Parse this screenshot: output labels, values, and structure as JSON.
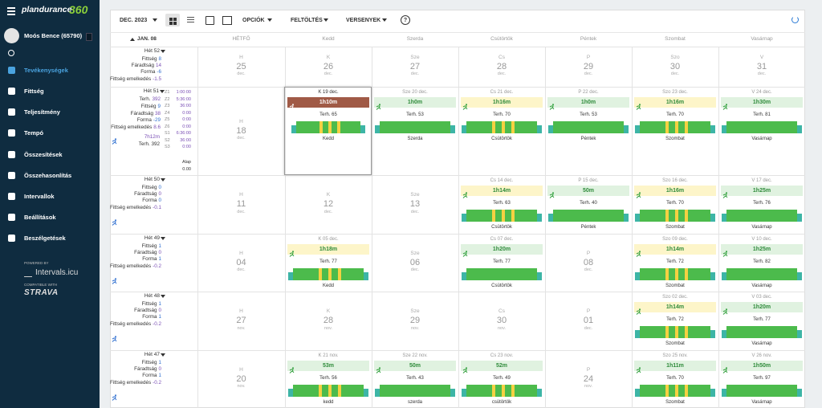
{
  "sidebar": {
    "logo": {
      "main": "plandurance",
      "num": "360"
    },
    "user": "Moós Bence (65790)",
    "menu": [
      "Tevékenységek",
      "Fittség",
      "Teljesítmény",
      "Tempó",
      "Összesítések",
      "Összehasonlítás",
      "Intervallok",
      "Beállítások",
      "Beszélgetések"
    ],
    "powered": "POWERED BY",
    "intervals": "Intervals.icu",
    "compat": "COMPATIBLE WITH",
    "strava": "STRAVA"
  },
  "toolbar": {
    "month": "DEC. 2023",
    "menus": [
      "OPCIÓK",
      "FELTÖLTÉS",
      "VERSENYEK"
    ],
    "help": "?"
  },
  "header": {
    "jump": "JAN. 08",
    "weekdays": [
      "HÉTFŐ",
      "Kedd",
      "Szerda",
      "Csütörtök",
      "Péntek",
      "Szombat",
      "Vasárnap"
    ]
  },
  "weeks": [
    {
      "label": "Hét 52",
      "stats": [
        {
          "label": "Fittség",
          "value": 8
        },
        {
          "label": "Fáradtság",
          "value": 14
        },
        {
          "label": "Forma",
          "value": -6
        },
        {
          "label": "Fittség emelkedés",
          "value": -1.5
        }
      ],
      "days": [
        {
          "abbr": "H",
          "num": "25",
          "month": "dec."
        },
        {
          "abbr": "K",
          "num": "26",
          "month": "dec."
        },
        {
          "abbr": "Sze",
          "num": "27",
          "month": "dec."
        },
        {
          "abbr": "Cs",
          "num": "28",
          "month": "dec."
        },
        {
          "abbr": "P",
          "num": "29",
          "month": "dec."
        },
        {
          "abbr": "Szo",
          "num": "30",
          "month": "dec."
        },
        {
          "abbr": "V",
          "num": "31",
          "month": "dec."
        }
      ]
    },
    {
      "label": "Hét 51",
      "stats": [
        {
          "label": "Terh.",
          "value": 392
        },
        {
          "label": "Fittség",
          "value": 9
        },
        {
          "label": "Fáradtság",
          "value": 38
        },
        {
          "label": "Forma",
          "value": -29
        },
        {
          "label": "Fittség emelkedés",
          "value": 8.6
        }
      ],
      "totals": {
        "duration": "7h12m",
        "load": "Terh. 392"
      },
      "zones": [
        [
          "Z1",
          "1:00:00"
        ],
        [
          "Z2",
          "5:36:00"
        ],
        [
          "Z3",
          "36:00"
        ],
        [
          "Z4",
          "0:00"
        ],
        [
          "Z5",
          "0:00"
        ],
        [
          "Z6",
          "0:00"
        ],
        [
          "S1",
          "6:36:00"
        ],
        [
          "S2",
          "36:00"
        ],
        [
          "S3",
          "0:00"
        ]
      ],
      "alap": {
        "label": "Alap",
        "value": "0.00"
      },
      "days": [
        {
          "abbr": "H",
          "num": "18",
          "month": "dec."
        },
        {
          "head": "K 19 dec.",
          "duration": "1h10m",
          "load": "Terh. 65",
          "name": "Kedd",
          "color": "#a05a46",
          "stripes": true,
          "selected": true
        },
        {
          "head": "Sze 20 dec.",
          "duration": "1h0m",
          "load": "Terh. 53",
          "name": "Szerda",
          "color": "#e0f2e0",
          "stripes": false
        },
        {
          "head": "Cs 21 dec.",
          "duration": "1h16m",
          "load": "Terh. 70",
          "name": "Csütörtök",
          "color": "#fdf5c9",
          "stripes": true
        },
        {
          "head": "P 22 dec.",
          "duration": "1h0m",
          "load": "Terh. 53",
          "name": "Péntek",
          "color": "#e0f2e0",
          "stripes": false
        },
        {
          "head": "Szo 23 dec.",
          "duration": "1h16m",
          "load": "Terh. 70",
          "name": "Szombat",
          "color": "#fdf5c9",
          "stripes": true
        },
        {
          "head": "V 24 dec.",
          "duration": "1h30m",
          "load": "Terh. 81",
          "name": "Vasárnap",
          "color": "#e0f2e0",
          "stripes": false
        }
      ]
    },
    {
      "label": "Hét 50",
      "stats": [
        {
          "label": "Fittség",
          "value": 0
        },
        {
          "label": "Fáradtság",
          "value": 0
        },
        {
          "label": "Forma",
          "value": 0
        },
        {
          "label": "Fittség emelkedés",
          "value": -0.1
        }
      ],
      "days": [
        {
          "abbr": "H",
          "num": "11",
          "month": "dec."
        },
        {
          "abbr": "K",
          "num": "12",
          "month": "dec."
        },
        {
          "abbr": "Sze",
          "num": "13",
          "month": "dec."
        },
        {
          "head": "Cs 14 dec.",
          "duration": "1h14m",
          "load": "Terh. 63",
          "name": "Csütörtök",
          "color": "#fdf5c9",
          "stripes": true
        },
        {
          "head": "P 15 dec.",
          "duration": "50m",
          "load": "Terh. 40",
          "name": "Péntek",
          "color": "#e0f2e0",
          "stripes": false
        },
        {
          "head": "Szo 16 dec.",
          "duration": "1h16m",
          "load": "Terh. 70",
          "name": "Szombat",
          "color": "#fdf5c9",
          "stripes": true
        },
        {
          "head": "V 17 dec.",
          "duration": "1h25m",
          "load": "Terh. 76",
          "name": "Vasárnap",
          "color": "#e0f2e0",
          "stripes": false
        }
      ]
    },
    {
      "label": "Hét 49",
      "stats": [
        {
          "label": "Fittség",
          "value": 1
        },
        {
          "label": "Fáradtság",
          "value": 0
        },
        {
          "label": "Forma",
          "value": 1
        },
        {
          "label": "Fittség emelkedés",
          "value": -0.2
        }
      ],
      "days": [
        {
          "abbr": "H",
          "num": "04",
          "month": "dec."
        },
        {
          "head": "K 05 dec.",
          "duration": "1h18m",
          "load": "Terh. 77",
          "name": "Kedd",
          "color": "#fdf5c9",
          "stripes": true
        },
        {
          "abbr": "Sze",
          "num": "06",
          "month": "dec."
        },
        {
          "head": "Cs 07 dec.",
          "duration": "1h20m",
          "load": "Terh. 77",
          "name": "Csütörtök",
          "color": "#e0f2e0",
          "stripes": false
        },
        {
          "abbr": "P",
          "num": "08",
          "month": "dec."
        },
        {
          "head": "Szo 09 dec.",
          "duration": "1h14m",
          "load": "Terh. 72",
          "name": "Szombat",
          "color": "#fdf5c9",
          "stripes": true
        },
        {
          "head": "V 10 dec.",
          "duration": "1h25m",
          "load": "Terh. 82",
          "name": "Vasárnap",
          "color": "#e0f2e0",
          "stripes": false
        }
      ]
    },
    {
      "label": "Hét 48",
      "stats": [
        {
          "label": "Fittség",
          "value": 1
        },
        {
          "label": "Fáradtság",
          "value": 0
        },
        {
          "label": "Forma",
          "value": 1
        },
        {
          "label": "Fittség emelkedés",
          "value": -0.2
        }
      ],
      "days": [
        {
          "abbr": "H",
          "num": "27",
          "month": "nov."
        },
        {
          "abbr": "K",
          "num": "28",
          "month": "nov."
        },
        {
          "abbr": "Sze",
          "num": "29",
          "month": "nov."
        },
        {
          "abbr": "Cs",
          "num": "30",
          "month": "nov."
        },
        {
          "abbr": "P",
          "num": "01",
          "month": "dec."
        },
        {
          "head": "Szo 02 dec.",
          "duration": "1h14m",
          "load": "Terh. 72",
          "name": "Szombat",
          "color": "#fdf5c9",
          "stripes": true
        },
        {
          "head": "V 03 dec.",
          "duration": "1h20m",
          "load": "Terh. 77",
          "name": "Vasárnap",
          "color": "#e0f2e0",
          "stripes": false
        }
      ]
    },
    {
      "label": "Hét 47",
      "stats": [
        {
          "label": "Fittség",
          "value": 1
        },
        {
          "label": "Fáradtság",
          "value": 0
        },
        {
          "label": "Forma",
          "value": 1
        },
        {
          "label": "Fittség emelkedés",
          "value": -0.2
        }
      ],
      "days": [
        {
          "abbr": "H",
          "num": "20",
          "month": "nov."
        },
        {
          "head": "K 21 nov.",
          "duration": "53m",
          "load": "Terh. 56",
          "name": "kedd",
          "color": "#e0f2e0",
          "stripes": true
        },
        {
          "head": "Sze 22 nov.",
          "duration": "50m",
          "load": "Terh. 43",
          "name": "szerda",
          "color": "#e0f2e0",
          "stripes": false
        },
        {
          "head": "Cs 23 nov.",
          "duration": "52m",
          "load": "Terh. 49",
          "name": "csütörtök",
          "color": "#e0f2e0",
          "stripes": true
        },
        {
          "abbr": "P",
          "num": "24",
          "month": "nov."
        },
        {
          "head": "Szo 25 nov.",
          "duration": "1h11m",
          "load": "Terh. 70",
          "name": "Szombat",
          "color": "#e0f2e0",
          "stripes": true
        },
        {
          "head": "V 26 nov.",
          "duration": "1h50m",
          "load": "Terh. 97",
          "name": "Vasárnap",
          "color": "#e0f2e0",
          "stripes": false
        }
      ]
    }
  ]
}
